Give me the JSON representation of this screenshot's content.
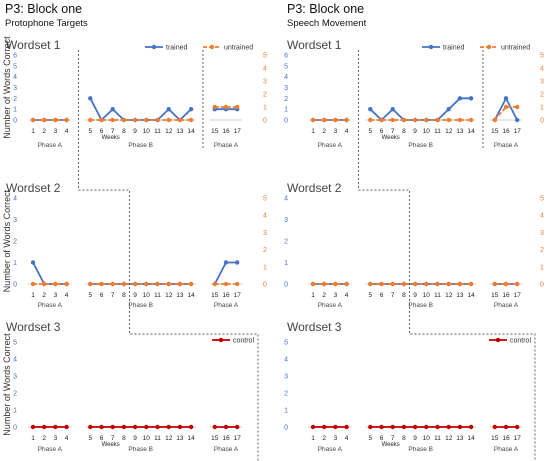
{
  "colors": {
    "trained": "#4472c4",
    "untrained": "#ed7d31",
    "control": "#c00000"
  },
  "blocks": [
    {
      "title": "P3: Block one",
      "subtitle": "Protophone Targets"
    },
    {
      "title": "P3: Block one",
      "subtitle": "Speech Movement"
    }
  ],
  "chart_data": [
    {
      "type": "line",
      "block": 0,
      "title": "Wordset 1",
      "ylabel": "Number of Words Correct",
      "xlabel": "Weeks",
      "left_axis": {
        "ticks": [
          0,
          1,
          2,
          3,
          4,
          5,
          6
        ],
        "range": [
          0,
          6
        ]
      },
      "right_axis": {
        "ticks": [
          0,
          1,
          2,
          3,
          4,
          5
        ],
        "range": [
          0,
          5
        ]
      },
      "phases": [
        {
          "label": "Phase A",
          "weeks": [
            1,
            2,
            3,
            4
          ]
        },
        {
          "label": "Phase B",
          "weeks": [
            5,
            6,
            7,
            8,
            9,
            10,
            11,
            12,
            13,
            14
          ]
        },
        {
          "label": "Phase A",
          "weeks": [
            15,
            16,
            17
          ]
        }
      ],
      "legend": {
        "position": "top-right",
        "entries": [
          "trained",
          "untrained"
        ]
      },
      "series": [
        {
          "name": "trained",
          "axis": "left",
          "segments": [
            {
              "x": [
                1,
                2,
                3,
                4
              ],
              "y": [
                0,
                0,
                0,
                0
              ]
            },
            {
              "x": [
                5,
                6,
                7,
                8,
                9,
                10,
                11,
                12,
                13,
                14
              ],
              "y": [
                2,
                0,
                1,
                0,
                0,
                0,
                0,
                1,
                0,
                1
              ]
            },
            {
              "x": [
                15,
                16,
                17
              ],
              "y": [
                1,
                1,
                1
              ]
            }
          ]
        },
        {
          "name": "untrained",
          "axis": "right",
          "segments": [
            {
              "x": [
                1,
                2,
                3,
                4
              ],
              "y": [
                0,
                0,
                0,
                0
              ]
            },
            {
              "x": [
                5,
                6,
                7,
                8,
                9,
                10,
                11,
                12,
                13,
                14
              ],
              "y": [
                0,
                0,
                0,
                0,
                0,
                0,
                0,
                0,
                0,
                0
              ]
            },
            {
              "x": [
                15,
                16,
                17
              ],
              "y": [
                1,
                1,
                1
              ]
            }
          ]
        }
      ]
    },
    {
      "type": "line",
      "block": 0,
      "title": "Wordset 2",
      "ylabel": "Number of Words Correct",
      "xlabel": "",
      "left_axis": {
        "ticks": [
          0,
          1,
          2,
          3,
          4
        ],
        "range": [
          0,
          4
        ]
      },
      "right_axis": {
        "ticks": [
          0,
          1,
          2,
          3,
          4,
          5
        ],
        "range": [
          0,
          5
        ]
      },
      "phases": [
        {
          "label": "Phase A",
          "weeks": [
            1,
            2,
            3,
            4
          ]
        },
        {
          "label": "Phase B",
          "weeks": [
            5,
            6,
            7,
            8,
            9,
            10,
            11,
            12,
            13,
            14
          ]
        },
        {
          "label": "Phase A",
          "weeks": [
            15,
            16,
            17
          ]
        }
      ],
      "series": [
        {
          "name": "trained",
          "axis": "left",
          "segments": [
            {
              "x": [
                1,
                2,
                3,
                4
              ],
              "y": [
                1,
                0,
                0,
                0
              ]
            },
            {
              "x": [
                5,
                6,
                7,
                8,
                9,
                10,
                11,
                12,
                13,
                14
              ],
              "y": [
                0,
                0,
                0,
                0,
                0,
                0,
                0,
                0,
                0,
                0
              ]
            },
            {
              "x": [
                15,
                16,
                17
              ],
              "y": [
                0,
                1,
                1
              ]
            }
          ]
        },
        {
          "name": "untrained",
          "axis": "right",
          "segments": [
            {
              "x": [
                1,
                2,
                3,
                4
              ],
              "y": [
                0,
                0,
                0,
                0
              ]
            },
            {
              "x": [
                5,
                6,
                7,
                8,
                9,
                10,
                11,
                12,
                13,
                14
              ],
              "y": [
                0,
                0,
                0,
                0,
                0,
                0,
                0,
                0,
                0,
                0
              ]
            },
            {
              "x": [
                15,
                16,
                17
              ],
              "y": [
                0,
                0,
                0
              ]
            }
          ]
        }
      ]
    },
    {
      "type": "line",
      "block": 0,
      "title": "Wordset 3",
      "ylabel": "Number of Words Correct",
      "xlabel": "Weeks",
      "left_axis": {
        "ticks": [
          0,
          1,
          2,
          3,
          4,
          5
        ],
        "range": [
          0,
          5
        ]
      },
      "right_axis": null,
      "phases": [
        {
          "label": "Phase A",
          "weeks": [
            1,
            2,
            3,
            4
          ]
        },
        {
          "label": "Phase B",
          "weeks": [
            5,
            6,
            7,
            8,
            9,
            10,
            11,
            12,
            13,
            14
          ]
        },
        {
          "label": "Phase A",
          "weeks": [
            15,
            16,
            17
          ]
        }
      ],
      "legend": {
        "position": "top-right",
        "entries": [
          "control"
        ]
      },
      "series": [
        {
          "name": "control",
          "axis": "left",
          "segments": [
            {
              "x": [
                1,
                2,
                3,
                4
              ],
              "y": [
                0,
                0,
                0,
                0
              ]
            },
            {
              "x": [
                5,
                6,
                7,
                8,
                9,
                10,
                11,
                12,
                13,
                14
              ],
              "y": [
                0,
                0,
                0,
                0,
                0,
                0,
                0,
                0,
                0,
                0
              ]
            },
            {
              "x": [
                15,
                16,
                17
              ],
              "y": [
                0,
                0,
                0
              ]
            }
          ]
        }
      ]
    },
    {
      "type": "line",
      "block": 1,
      "title": "Wordset 1",
      "ylabel": "",
      "xlabel": "Weeks",
      "left_axis": {
        "ticks": [
          0,
          1,
          2,
          3,
          4,
          5,
          6
        ],
        "range": [
          0,
          6
        ]
      },
      "right_axis": {
        "ticks": [
          0,
          1,
          2,
          3,
          4,
          5
        ],
        "range": [
          0,
          5
        ]
      },
      "phases": [
        {
          "label": "Phase A",
          "weeks": [
            1,
            2,
            3,
            4
          ]
        },
        {
          "label": "Phase B",
          "weeks": [
            5,
            6,
            7,
            8,
            9,
            10,
            11,
            12,
            13,
            14
          ]
        },
        {
          "label": "Phase A",
          "weeks": [
            15,
            16,
            17
          ]
        }
      ],
      "legend": {
        "position": "top-right",
        "entries": [
          "trained",
          "untrained"
        ]
      },
      "series": [
        {
          "name": "trained",
          "axis": "left",
          "segments": [
            {
              "x": [
                1,
                2,
                3,
                4
              ],
              "y": [
                0,
                0,
                0,
                0
              ]
            },
            {
              "x": [
                5,
                6,
                7,
                8,
                9,
                10,
                11,
                12,
                13,
                14
              ],
              "y": [
                1,
                0,
                1,
                0,
                0,
                0,
                0,
                1,
                2,
                2
              ]
            },
            {
              "x": [
                15,
                16,
                17
              ],
              "y": [
                0,
                2,
                0
              ]
            }
          ]
        },
        {
          "name": "untrained",
          "axis": "right",
          "segments": [
            {
              "x": [
                1,
                2,
                3,
                4
              ],
              "y": [
                0,
                0,
                0,
                0
              ]
            },
            {
              "x": [
                5,
                6,
                7,
                8,
                9,
                10,
                11,
                12,
                13,
                14
              ],
              "y": [
                0,
                0,
                0,
                0,
                0,
                0,
                0,
                0,
                0,
                0
              ]
            },
            {
              "x": [
                15,
                16,
                17
              ],
              "y": [
                0,
                1,
                1
              ]
            }
          ]
        }
      ]
    },
    {
      "type": "line",
      "block": 1,
      "title": "Wordset 2",
      "ylabel": "",
      "xlabel": "",
      "left_axis": {
        "ticks": [
          0,
          1,
          2,
          3,
          4
        ],
        "range": [
          0,
          4
        ]
      },
      "right_axis": {
        "ticks": [
          0,
          1,
          2,
          3,
          4,
          5
        ],
        "range": [
          0,
          5
        ]
      },
      "phases": [
        {
          "label": "Phase A",
          "weeks": [
            1,
            2,
            3,
            4
          ]
        },
        {
          "label": "Phase B",
          "weeks": [
            5,
            6,
            7,
            8,
            9,
            10,
            11,
            12,
            13,
            14
          ]
        },
        {
          "label": "Phase A",
          "weeks": [
            15,
            16,
            17
          ]
        }
      ],
      "series": [
        {
          "name": "trained",
          "axis": "left",
          "segments": [
            {
              "x": [
                1,
                2,
                3,
                4
              ],
              "y": [
                0,
                0,
                0,
                0
              ]
            },
            {
              "x": [
                5,
                6,
                7,
                8,
                9,
                10,
                11,
                12,
                13,
                14
              ],
              "y": [
                0,
                0,
                0,
                0,
                0,
                0,
                0,
                0,
                0,
                0
              ]
            },
            {
              "x": [
                15,
                16,
                17
              ],
              "y": [
                0,
                0,
                0
              ]
            }
          ]
        },
        {
          "name": "untrained",
          "axis": "right",
          "segments": [
            {
              "x": [
                1,
                2,
                3,
                4
              ],
              "y": [
                0,
                0,
                0,
                0
              ]
            },
            {
              "x": [
                5,
                6,
                7,
                8,
                9,
                10,
                11,
                12,
                13,
                14
              ],
              "y": [
                0,
                0,
                0,
                0,
                0,
                0,
                0,
                0,
                0,
                0
              ]
            },
            {
              "x": [
                15,
                16,
                17
              ],
              "y": [
                0,
                0,
                0
              ]
            }
          ]
        }
      ]
    },
    {
      "type": "line",
      "block": 1,
      "title": "Wordset 3",
      "ylabel": "",
      "xlabel": "Weeks",
      "left_axis": {
        "ticks": [
          0,
          1,
          2,
          3,
          4,
          5
        ],
        "range": [
          0,
          5
        ]
      },
      "right_axis": null,
      "phases": [
        {
          "label": "Phase A",
          "weeks": [
            1,
            2,
            3,
            4
          ]
        },
        {
          "label": "Phase B",
          "weeks": [
            5,
            6,
            7,
            8,
            9,
            10,
            11,
            12,
            13,
            14
          ]
        },
        {
          "label": "Phase A",
          "weeks": [
            15,
            16,
            17
          ]
        }
      ],
      "legend": {
        "position": "top-right",
        "entries": [
          "control"
        ]
      },
      "series": [
        {
          "name": "control",
          "axis": "left",
          "segments": [
            {
              "x": [
                1,
                2,
                3,
                4
              ],
              "y": [
                0,
                0,
                0,
                0
              ]
            },
            {
              "x": [
                5,
                6,
                7,
                8,
                9,
                10,
                11,
                12,
                13,
                14
              ],
              "y": [
                0,
                0,
                0,
                0,
                0,
                0,
                0,
                0,
                0,
                0
              ]
            },
            {
              "x": [
                15,
                16,
                17
              ],
              "y": [
                0,
                0,
                0
              ]
            }
          ]
        }
      ]
    }
  ]
}
